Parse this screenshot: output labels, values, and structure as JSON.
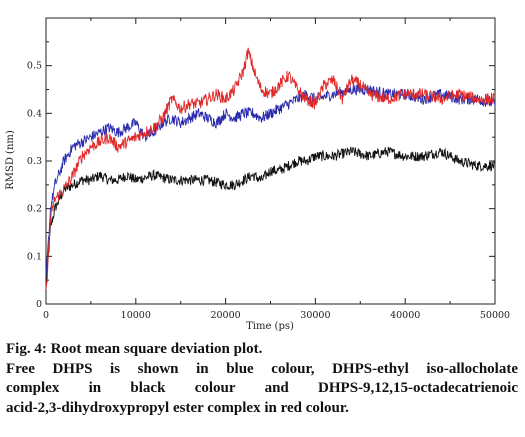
{
  "chart_data": {
    "type": "line",
    "title": "",
    "xlabel": "Time (ps)",
    "ylabel": "RMSD (nm)",
    "xlim": [
      0,
      50000
    ],
    "ylim": [
      0,
      0.6
    ],
    "x_ticks": [
      0,
      10000,
      20000,
      30000,
      40000,
      50000
    ],
    "y_ticks": [
      0,
      0.1,
      0.2,
      0.3,
      0.4,
      0.5
    ],
    "x_tick_labels": [
      "0",
      "10000",
      "20000",
      "30000",
      "40000",
      "50000"
    ],
    "y_tick_labels": [
      "0",
      "0.1",
      "0.2",
      "0.3",
      "0.4",
      "0.5"
    ],
    "grid": false,
    "legend": "none",
    "series": [
      {
        "color": "#2b2bb0",
        "x": [
          0,
          500,
          1000,
          2000,
          3000,
          4000,
          5000,
          6000,
          7000,
          8000,
          9000,
          10000,
          11000,
          12000,
          13000,
          14000,
          15000,
          16000,
          17000,
          18000,
          19000,
          20000,
          21000,
          22000,
          23000,
          24000,
          25000,
          26000,
          27000,
          28000,
          29000,
          30000,
          32000,
          34000,
          36000,
          38000,
          40000,
          42000,
          44000,
          46000,
          48000,
          50000
        ],
        "y": [
          0.05,
          0.2,
          0.25,
          0.3,
          0.33,
          0.34,
          0.35,
          0.36,
          0.37,
          0.36,
          0.37,
          0.38,
          0.35,
          0.36,
          0.38,
          0.39,
          0.38,
          0.39,
          0.4,
          0.39,
          0.38,
          0.4,
          0.39,
          0.4,
          0.4,
          0.39,
          0.4,
          0.41,
          0.42,
          0.43,
          0.44,
          0.43,
          0.44,
          0.45,
          0.45,
          0.44,
          0.44,
          0.43,
          0.44,
          0.43,
          0.43,
          0.42
        ]
      },
      {
        "color": "#111111",
        "x": [
          0,
          500,
          1000,
          2000,
          3000,
          4000,
          5000,
          6000,
          7000,
          8000,
          9000,
          10000,
          12000,
          14000,
          16000,
          18000,
          20000,
          21000,
          22000,
          23000,
          24000,
          25000,
          26000,
          27000,
          28000,
          29000,
          30000,
          32000,
          34000,
          36000,
          38000,
          40000,
          42000,
          44000,
          46000,
          48000,
          50000
        ],
        "y": [
          0.03,
          0.16,
          0.2,
          0.24,
          0.25,
          0.26,
          0.26,
          0.27,
          0.26,
          0.26,
          0.27,
          0.26,
          0.27,
          0.26,
          0.26,
          0.26,
          0.25,
          0.25,
          0.26,
          0.27,
          0.26,
          0.28,
          0.28,
          0.29,
          0.3,
          0.3,
          0.31,
          0.31,
          0.32,
          0.31,
          0.32,
          0.31,
          0.31,
          0.32,
          0.3,
          0.29,
          0.29
        ]
      },
      {
        "color": "#e02828",
        "x": [
          0,
          500,
          1000,
          2000,
          3000,
          4000,
          5000,
          6000,
          7000,
          8000,
          9000,
          10000,
          11000,
          12000,
          13000,
          14000,
          15000,
          16000,
          17000,
          18000,
          19000,
          20000,
          21000,
          22000,
          22500,
          23000,
          23500,
          24000,
          25000,
          26000,
          27000,
          28000,
          29000,
          30000,
          31000,
          32000,
          33000,
          34000,
          35000,
          36000,
          38000,
          40000,
          42000,
          44000,
          46000,
          48000,
          50000
        ],
        "y": [
          0.02,
          0.18,
          0.22,
          0.24,
          0.27,
          0.31,
          0.33,
          0.34,
          0.35,
          0.33,
          0.34,
          0.35,
          0.36,
          0.37,
          0.39,
          0.43,
          0.41,
          0.42,
          0.42,
          0.43,
          0.44,
          0.43,
          0.45,
          0.49,
          0.53,
          0.5,
          0.47,
          0.45,
          0.44,
          0.46,
          0.48,
          0.45,
          0.43,
          0.42,
          0.46,
          0.47,
          0.43,
          0.47,
          0.46,
          0.44,
          0.43,
          0.44,
          0.44,
          0.43,
          0.44,
          0.43,
          0.43
        ]
      }
    ]
  },
  "caption": {
    "line1": "Fig. 4: Root mean square deviation plot.",
    "line2": "Free DHPS is shown in blue colour, DHPS-ethyl iso-allocholate",
    "line3": "complex in black colour and DHPS-9,12,15-octadecatrienoic",
    "line4": "acid-2,3-dihydroxypropyl ester complex in red colour."
  }
}
